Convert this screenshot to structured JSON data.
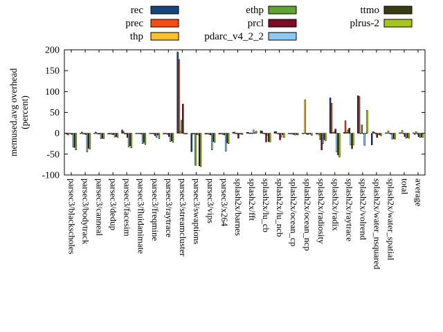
{
  "chart_data": {
    "type": "bar",
    "title": "",
    "xlabel": "",
    "ylabel": "memused.avg overhead (percent)",
    "ylabel_lines": [
      "memused.avg overhead",
      "(percent)"
    ],
    "ylim": [
      -100,
      200
    ],
    "yticks": [
      -100,
      -50,
      0,
      50,
      100,
      150,
      200
    ],
    "grid": false,
    "legend_position": "top",
    "legend_columns": [
      [
        "rec",
        "prec",
        "thp"
      ],
      [
        "ethp",
        "prcl",
        "pdarc_v4_2_2"
      ],
      [
        "ttmo",
        "plrus-2"
      ]
    ],
    "categories": [
      "parsec3/blackscholes",
      "parsec3/bodytrack",
      "parsec3/canneal",
      "parsec3/dedup",
      "parsec3/facesim",
      "parsec3/fluidanimate",
      "parsec3/freqmine",
      "parsec3/raytrace",
      "parsec3/streamcluster",
      "parsec3/swaptions",
      "parsec3/vips",
      "parsec3/x264",
      "splash2x/barnes",
      "splash2x/fft",
      "splash2x/lu_cb",
      "splash2x/lu_ncb",
      "splash2x/ocean_cp",
      "splash2x/ocean_ncp",
      "splash2x/radiosity",
      "splash2x/radix",
      "splash2x/raytrace",
      "splash2x/volrend",
      "splash2x/water_nsquared",
      "splash2x/water_spatial",
      "total",
      "average"
    ],
    "series": [
      {
        "name": "rec",
        "color": "#15477f",
        "values": [
          -2,
          -1,
          -1,
          -2,
          8,
          -1,
          -1,
          -2,
          195,
          -44,
          -2,
          -2,
          2,
          2,
          6,
          4,
          -1,
          -1,
          -2,
          85,
          2,
          90,
          -28,
          1,
          1,
          1
        ]
      },
      {
        "name": "prec",
        "color": "#fb4a14",
        "values": [
          -4,
          3,
          3,
          -2,
          4,
          -1,
          -1,
          -1,
          177,
          -2,
          -2,
          -2,
          3,
          2,
          5,
          4,
          -1,
          -1,
          -2,
          72,
          30,
          88,
          4,
          1,
          1,
          -3
        ]
      },
      {
        "name": "thp",
        "color": "#fdc029",
        "values": [
          -1,
          -2,
          -1,
          -2,
          -2,
          -1,
          -1,
          -2,
          5,
          -2,
          -2,
          -2,
          -1,
          0,
          -1,
          -1,
          -2,
          80,
          -4,
          2,
          2,
          0,
          2,
          6,
          7,
          4
        ]
      },
      {
        "name": "ethp",
        "color": "#61a32e",
        "values": [
          -1,
          -2,
          -2,
          -3,
          -2,
          -1,
          -2,
          -3,
          31,
          -77,
          -3,
          -3,
          -2,
          1,
          -2,
          -2,
          -2,
          -2,
          -15,
          3,
          8,
          20,
          -2,
          -1,
          -1,
          -2
        ]
      },
      {
        "name": "prcl",
        "color": "#7c0d26",
        "values": [
          -3,
          -3,
          -2,
          -3,
          -10,
          -2,
          -6,
          -8,
          70,
          -3,
          -4,
          -4,
          -12,
          -1,
          -21,
          -16,
          -3,
          -3,
          -40,
          10,
          12,
          0,
          -10,
          -2,
          -8,
          -8
        ]
      },
      {
        "name": "pdarc_v4_2_2",
        "color": "#8cc9f0",
        "values": [
          -33,
          -45,
          -13,
          -9,
          -33,
          -25,
          -10,
          -20,
          -2,
          -4,
          -40,
          -43,
          -2,
          8,
          -5,
          -9,
          -4,
          -2,
          -25,
          -45,
          -28,
          -29,
          -3,
          -14,
          -12,
          -10
        ]
      },
      {
        "name": "ttmo",
        "color": "#3b3d10",
        "values": [
          -34,
          -36,
          -12,
          -8,
          -30,
          -22,
          -4,
          -18,
          -1,
          -78,
          -20,
          -23,
          -2,
          1,
          -20,
          -3,
          -3,
          -2,
          -15,
          -52,
          -37,
          0,
          -4,
          -13,
          -10,
          -9
        ]
      },
      {
        "name": "plrus-2",
        "color": "#a6c618",
        "values": [
          -40,
          -38,
          -13,
          -10,
          -35,
          -27,
          -13,
          -22,
          -2,
          -80,
          -22,
          -25,
          -3,
          5,
          -21,
          -10,
          -4,
          -5,
          -18,
          -57,
          -28,
          55,
          -6,
          -14,
          -12,
          -10
        ]
      }
    ]
  }
}
